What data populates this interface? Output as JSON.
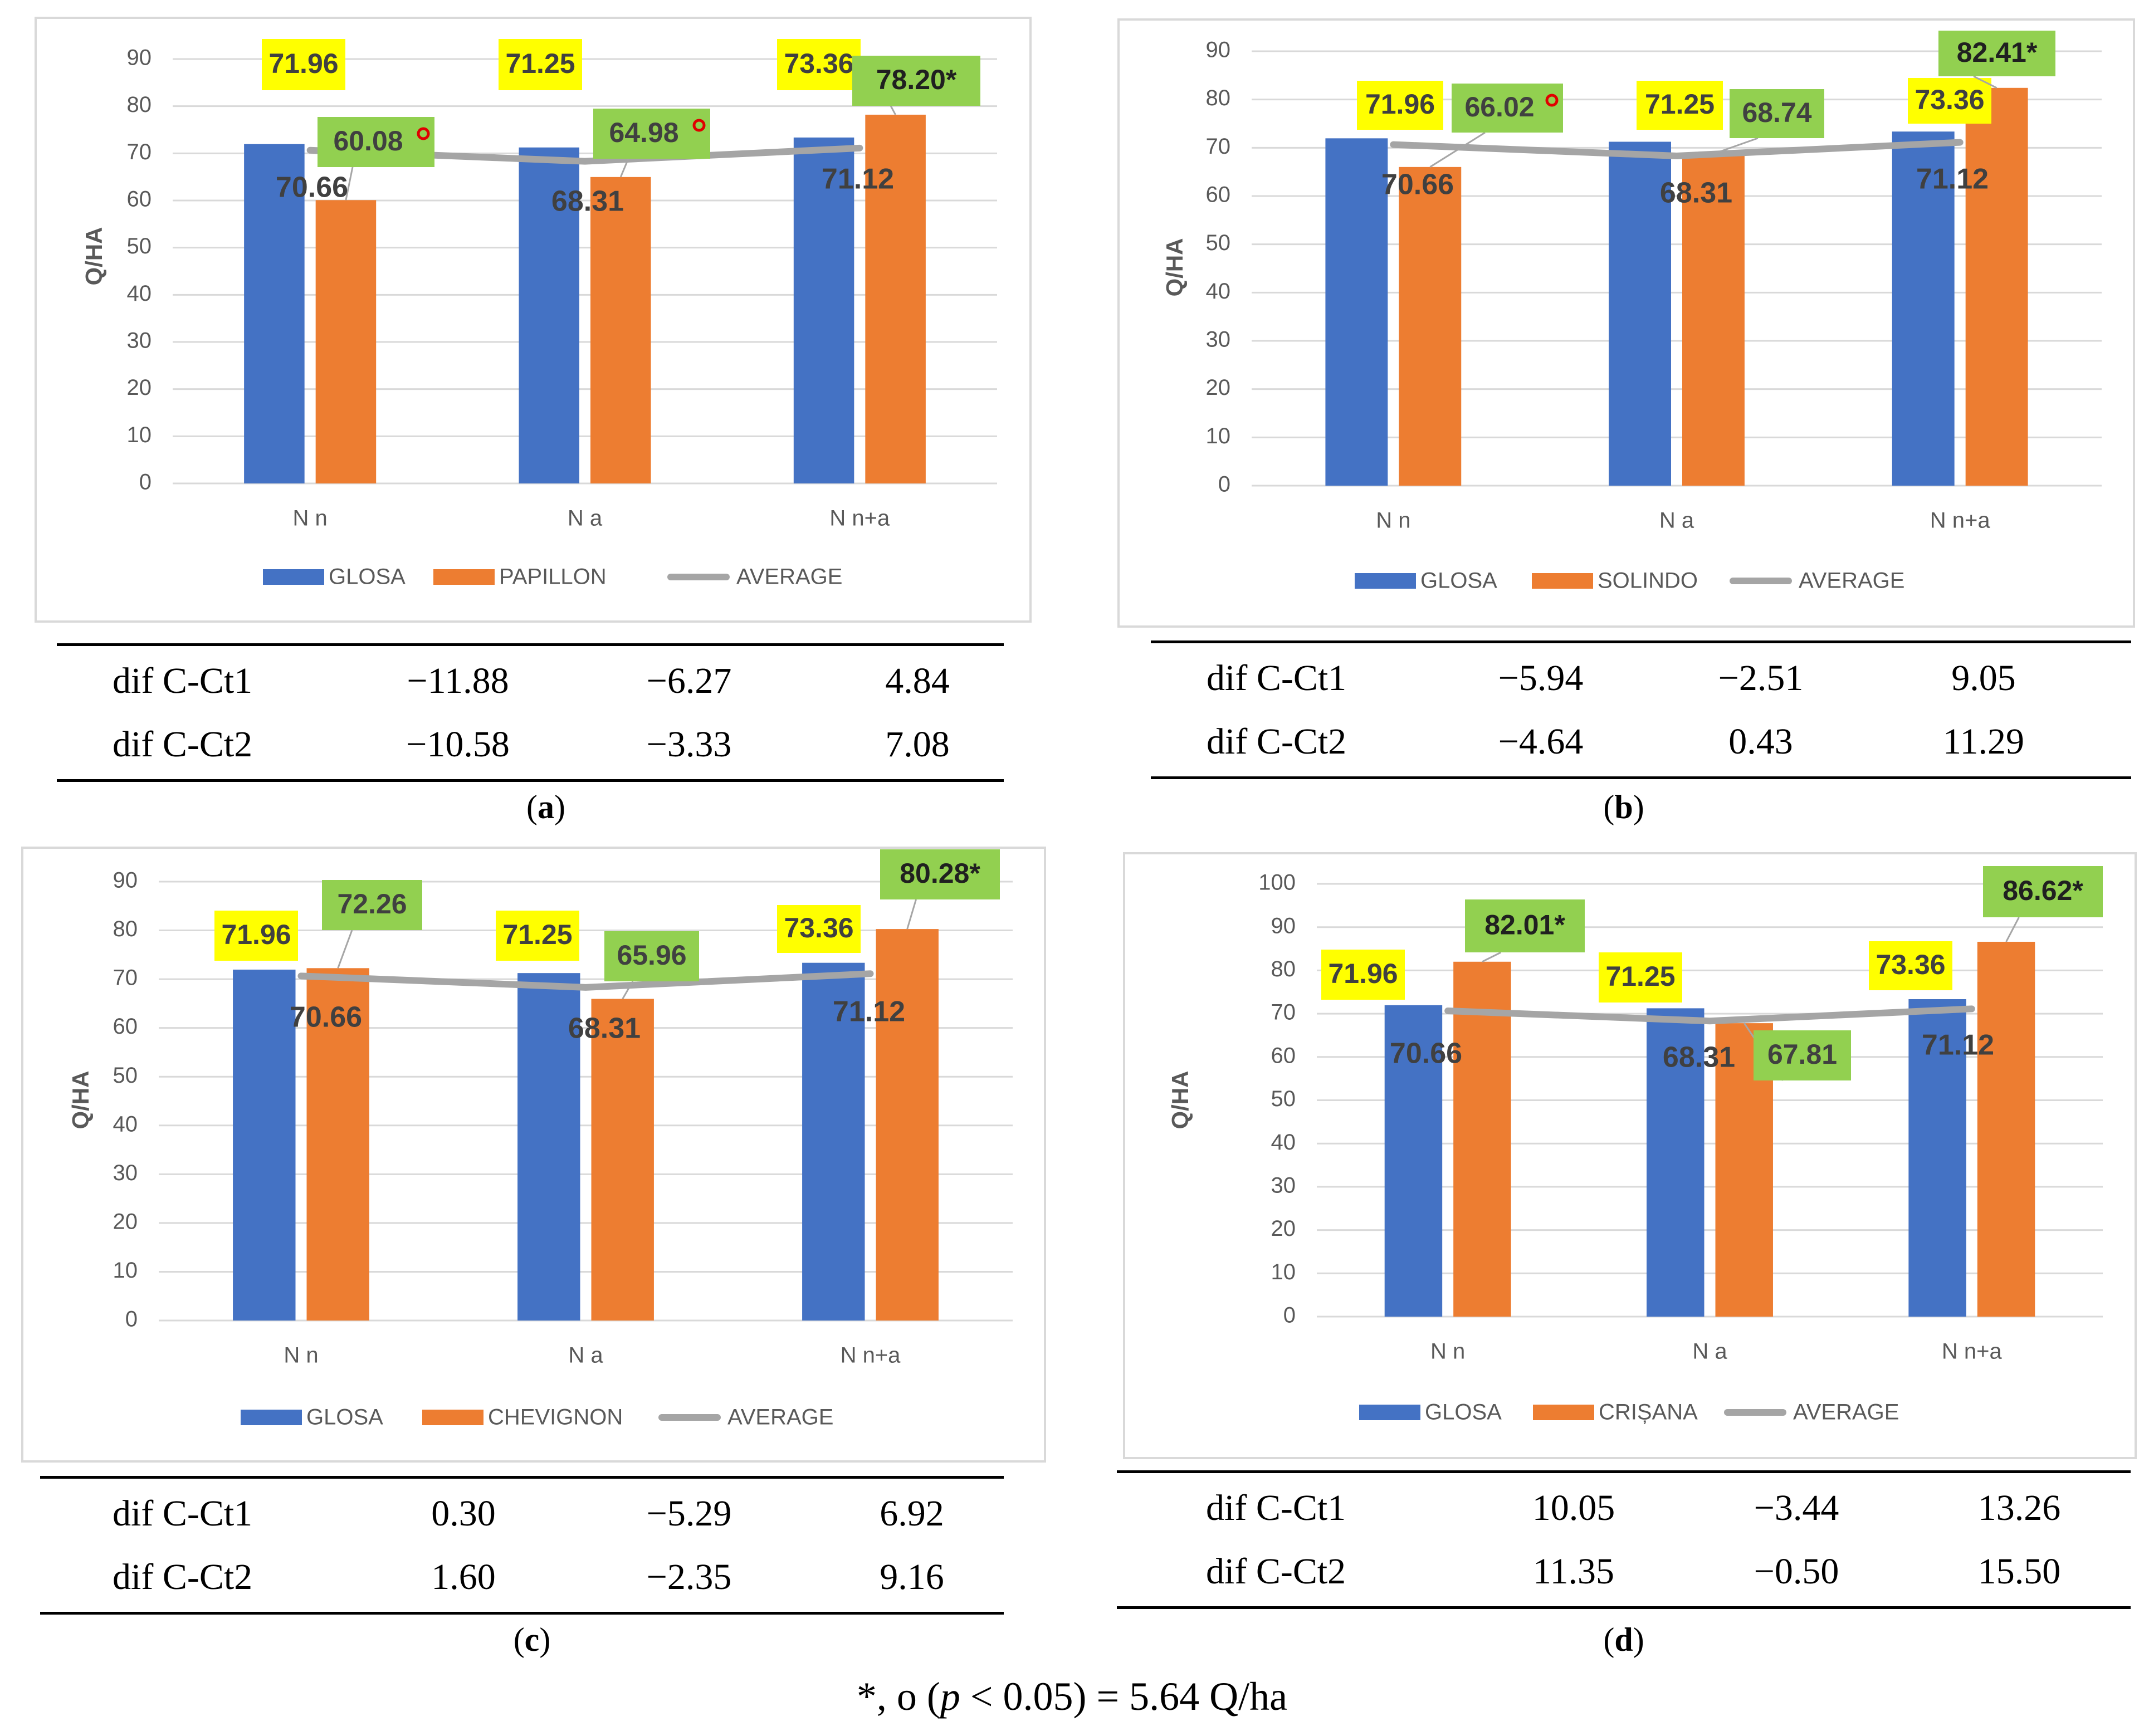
{
  "colors": {
    "glosa": "#4472c4",
    "variety": "#ed7d31",
    "average": "#a5a5a5",
    "label_yellow": "#ffff00",
    "label_green": "#92d050",
    "axis_text": "#595959",
    "grid": "#d9d9d9",
    "circle_mark": "#e00000"
  },
  "categories": [
    "N n",
    "N a",
    "N n+a"
  ],
  "footnote": {
    "prefix": "*, ",
    "circle": "ο",
    "open": " (",
    "p": "p",
    "rest": " < 0.05) = 5.64 Q/ha"
  },
  "panels": [
    {
      "caption": "a",
      "dif": {
        "rows": [
          {
            "label": "dif C-Ct1",
            "values": [
              "−11.88",
              "−6.27",
              "4.84"
            ]
          },
          {
            "label": "dif C-Ct2",
            "values": [
              "−10.58",
              "−3.33",
              "7.08"
            ]
          }
        ]
      },
      "chart_data": {
        "type": "bar",
        "ylabel": "Q/HA",
        "ylim": [
          0,
          90
        ],
        "yticks": [
          "0",
          "10",
          "20",
          "30",
          "40",
          "50",
          "60",
          "70",
          "80",
          "90"
        ],
        "categories": [
          "N n",
          "N a",
          "N n+a"
        ],
        "series": [
          {
            "name": "GLOSA",
            "values": [
              71.96,
              71.25,
              73.36
            ],
            "labels": [
              "71.96",
              "71.25",
              "73.36"
            ]
          },
          {
            "name": "PAPILLON",
            "values": [
              60.08,
              64.98,
              78.2
            ],
            "labels": [
              "60.08",
              "64.98",
              "78.20"
            ],
            "marks": [
              "o",
              "o",
              "*"
            ]
          },
          {
            "name": "AVERAGE",
            "type": "line",
            "values": [
              70.66,
              68.31,
              71.12
            ],
            "labels": [
              "70.66",
              "68.31",
              "71.12"
            ]
          }
        ],
        "legend": [
          "GLOSA",
          "PAPILLON",
          "AVERAGE"
        ]
      }
    },
    {
      "caption": "b",
      "dif": {
        "rows": [
          {
            "label": "dif C-Ct1",
            "values": [
              "−5.94",
              "−2.51",
              "9.05"
            ]
          },
          {
            "label": "dif C-Ct2",
            "values": [
              "−4.64",
              "0.43",
              "11.29"
            ]
          }
        ]
      },
      "chart_data": {
        "type": "bar",
        "ylabel": "Q/HA",
        "ylim": [
          0,
          90
        ],
        "yticks": [
          "0",
          "10",
          "20",
          "30",
          "40",
          "50",
          "60",
          "70",
          "80",
          "90"
        ],
        "categories": [
          "N n",
          "N a",
          "N n+a"
        ],
        "series": [
          {
            "name": "GLOSA",
            "values": [
              71.96,
              71.25,
              73.36
            ],
            "labels": [
              "71.96",
              "71.25",
              "73.36"
            ]
          },
          {
            "name": "SOLINDO",
            "values": [
              66.02,
              68.74,
              82.41
            ],
            "labels": [
              "66.02",
              "68.74",
              "82.41"
            ],
            "marks": [
              "o",
              "",
              "*"
            ]
          },
          {
            "name": "AVERAGE",
            "type": "line",
            "values": [
              70.66,
              68.31,
              71.12
            ],
            "labels": [
              "70.66",
              "68.31",
              "71.12"
            ]
          }
        ],
        "legend": [
          "GLOSA",
          "SOLINDO",
          "AVERAGE"
        ]
      }
    },
    {
      "caption": "c",
      "dif": {
        "rows": [
          {
            "label": "dif C-Ct1",
            "values": [
              "0.30",
              "−5.29",
              "6.92"
            ]
          },
          {
            "label": "dif C-Ct2",
            "values": [
              "1.60",
              "−2.35",
              "9.16"
            ]
          }
        ]
      },
      "chart_data": {
        "type": "bar",
        "ylabel": "Q/HA",
        "ylim": [
          0,
          90
        ],
        "yticks": [
          "0",
          "10",
          "20",
          "30",
          "40",
          "50",
          "60",
          "70",
          "80",
          "90"
        ],
        "categories": [
          "N n",
          "N a",
          "N n+a"
        ],
        "series": [
          {
            "name": "GLOSA",
            "values": [
              71.96,
              71.25,
              73.36
            ],
            "labels": [
              "71.96",
              "71.25",
              "73.36"
            ]
          },
          {
            "name": "CHEVIGNON",
            "values": [
              72.26,
              65.96,
              80.28
            ],
            "labels": [
              "72.26",
              "65.96",
              "80.28"
            ],
            "marks": [
              "",
              "",
              "*"
            ]
          },
          {
            "name": "AVERAGE",
            "type": "line",
            "values": [
              70.66,
              68.31,
              71.12
            ],
            "labels": [
              "70.66",
              "68.31",
              "71.12"
            ]
          }
        ],
        "legend": [
          "GLOSA",
          "CHEVIGNON",
          "AVERAGE"
        ]
      }
    },
    {
      "caption": "d",
      "dif": {
        "rows": [
          {
            "label": "dif C-Ct1",
            "values": [
              "10.05",
              "−3.44",
              "13.26"
            ]
          },
          {
            "label": "dif C-Ct2",
            "values": [
              "11.35",
              "−0.50",
              "15.50"
            ]
          }
        ]
      },
      "chart_data": {
        "type": "bar",
        "ylabel": "Q/HA",
        "ylim": [
          0,
          100
        ],
        "yticks": [
          "0",
          "10",
          "20",
          "30",
          "40",
          "50",
          "60",
          "70",
          "80",
          "90",
          "100"
        ],
        "categories": [
          "N n",
          "N a",
          "N n+a"
        ],
        "series": [
          {
            "name": "GLOSA",
            "values": [
              71.96,
              71.25,
              73.36
            ],
            "labels": [
              "71.96",
              "71.25",
              "73.36"
            ]
          },
          {
            "name": "CRIȘANA",
            "values": [
              82.01,
              67.81,
              86.62
            ],
            "labels": [
              "82.01",
              "67.81",
              "86.62"
            ],
            "marks": [
              "*",
              "",
              "*"
            ]
          },
          {
            "name": "AVERAGE",
            "type": "line",
            "values": [
              70.66,
              68.31,
              71.12
            ],
            "labels": [
              "70.66",
              "68.31",
              "71.12"
            ]
          }
        ],
        "legend": [
          "GLOSA",
          "CRIȘANA",
          "AVERAGE"
        ]
      }
    }
  ]
}
